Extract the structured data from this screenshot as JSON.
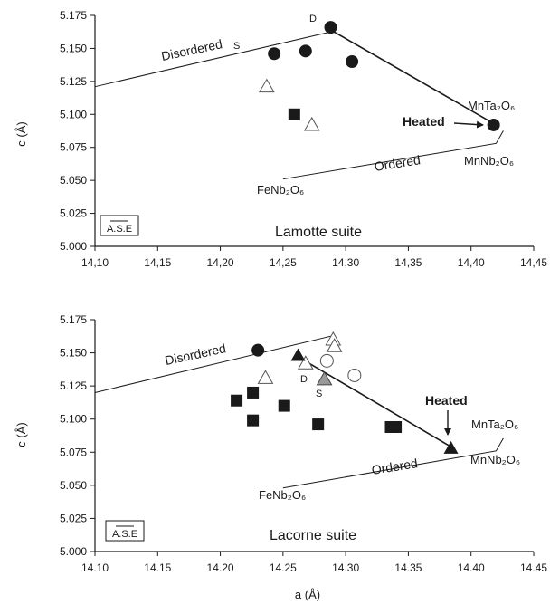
{
  "chart_data": [
    {
      "type": "scatter",
      "ylabel": "c (Å)",
      "xlim": [
        14.1,
        14.45
      ],
      "ylim": [
        5.0,
        5.175
      ],
      "xticks": [
        "14,10",
        "14,15",
        "14,20",
        "14,25",
        "14,30",
        "14,35",
        "14,40",
        "14,45"
      ],
      "yticks": [
        "5.000",
        "5.025",
        "5.050",
        "5.075",
        "5.100",
        "5.125",
        "5.150",
        "5.175"
      ],
      "suite_label": "Lamotte suite",
      "ase_label": "A.S.E",
      "labels": {
        "disordered": "Disordered",
        "ordered": "Ordered",
        "heated": "Heated",
        "s": "S",
        "d": "D",
        "mnta": "MnTa₂O₆",
        "mnnb": "MnNb₂O₆",
        "fenb": "FeNb₂O₆"
      },
      "series": [
        {
          "symbol": "filled-circle",
          "points": [
            [
              14.243,
              5.146
            ],
            [
              14.268,
              5.148
            ],
            [
              14.288,
              5.166
            ],
            [
              14.305,
              5.14
            ],
            [
              14.418,
              5.092
            ]
          ]
        },
        {
          "symbol": "open-triangle",
          "points": [
            [
              14.237,
              5.121
            ],
            [
              14.273,
              5.092
            ]
          ]
        },
        {
          "symbol": "filled-square",
          "points": [
            [
              14.259,
              5.1
            ]
          ]
        }
      ],
      "lines": {
        "disordered": [
          [
            14.1,
            5.121
          ],
          [
            14.29,
            5.163
          ]
        ],
        "ordered": [
          [
            14.25,
            5.051
          ],
          [
            14.42,
            5.078
          ]
        ],
        "join": [
          [
            14.288,
            5.164
          ],
          [
            14.42,
            5.092
          ]
        ]
      }
    },
    {
      "type": "scatter",
      "xlabel": "a (Å)",
      "ylabel": "c (Å)",
      "xlim": [
        14.1,
        14.45
      ],
      "ylim": [
        5.0,
        5.175
      ],
      "xticks": [
        "14.10",
        "14.15",
        "14.20",
        "14.25",
        "14.30",
        "14.35",
        "14.40",
        "14.45"
      ],
      "yticks": [
        "5.000",
        "5.025",
        "5.050",
        "5.075",
        "5.100",
        "5.125",
        "5.150",
        "5.175"
      ],
      "suite_label": "Lacorne suite",
      "ase_label": "A.S.E",
      "labels": {
        "disordered": "Disordered",
        "ordered": "Ordered",
        "heated": "Heated",
        "s": "S",
        "d": "D",
        "mnta": "MnTa₂O₆",
        "mnnb": "MnNb₂O₆",
        "fenb": "FeNb₂O₆"
      },
      "series": [
        {
          "symbol": "filled-circle",
          "points": [
            [
              14.23,
              5.152
            ]
          ]
        },
        {
          "symbol": "open-circle",
          "points": [
            [
              14.285,
              5.144
            ],
            [
              14.307,
              5.133
            ]
          ]
        },
        {
          "symbol": "open-triangle",
          "points": [
            [
              14.236,
              5.131
            ],
            [
              14.268,
              5.142
            ],
            [
              14.29,
              5.16
            ],
            [
              14.291,
              5.155
            ]
          ]
        },
        {
          "symbol": "filled-triangle",
          "points": [
            [
              14.262,
              5.148
            ],
            [
              14.384,
              5.078
            ]
          ]
        },
        {
          "symbol": "hatched-triangle",
          "points": [
            [
              14.283,
              5.13
            ]
          ]
        },
        {
          "symbol": "filled-square",
          "points": [
            [
              14.213,
              5.114
            ],
            [
              14.226,
              5.12
            ],
            [
              14.226,
              5.099
            ],
            [
              14.251,
              5.11
            ],
            [
              14.278,
              5.096
            ],
            [
              14.336,
              5.094
            ],
            [
              14.34,
              5.094
            ]
          ]
        }
      ],
      "lines": {
        "disordered": [
          [
            14.1,
            5.12
          ],
          [
            14.29,
            5.163
          ]
        ],
        "ordered": [
          [
            14.25,
            5.048
          ],
          [
            14.42,
            5.076
          ]
        ],
        "join": [
          [
            14.262,
            5.147
          ],
          [
            14.386,
            5.078
          ]
        ]
      }
    }
  ]
}
